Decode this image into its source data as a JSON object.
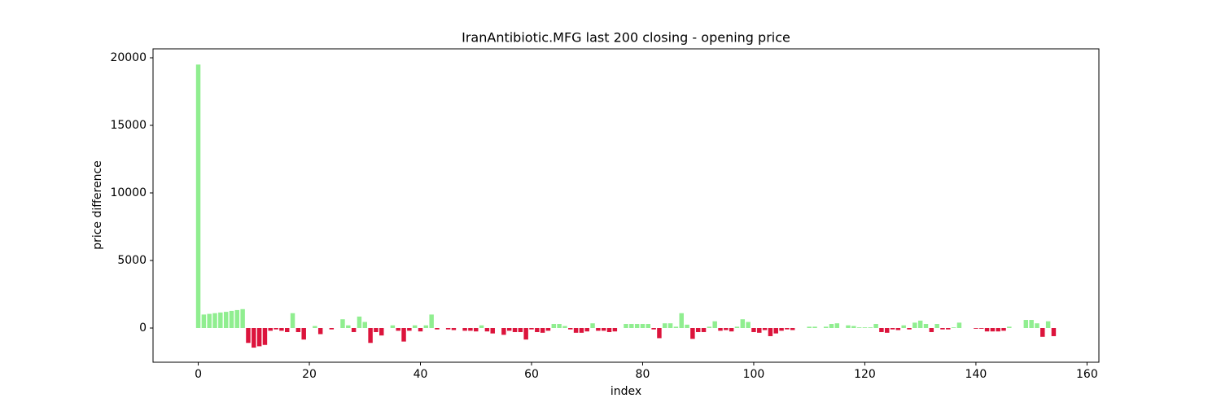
{
  "chart_data": {
    "type": "bar",
    "title": "IranAntibiotic.MFG last 200 closing - opening price",
    "xlabel": "index",
    "ylabel": "price difference",
    "x": [
      0,
      1,
      2,
      3,
      4,
      5,
      6,
      7,
      8,
      9,
      10,
      11,
      12,
      13,
      14,
      15,
      16,
      17,
      18,
      19,
      20,
      21,
      22,
      23,
      24,
      25,
      26,
      27,
      28,
      29,
      30,
      31,
      32,
      33,
      34,
      35,
      36,
      37,
      38,
      39,
      40,
      41,
      42,
      43,
      44,
      45,
      46,
      47,
      48,
      49,
      50,
      51,
      52,
      53,
      54,
      55,
      56,
      57,
      58,
      59,
      60,
      61,
      62,
      63,
      64,
      65,
      66,
      67,
      68,
      69,
      70,
      71,
      72,
      73,
      74,
      75,
      76,
      77,
      78,
      79,
      80,
      81,
      82,
      83,
      84,
      85,
      86,
      87,
      88,
      89,
      90,
      91,
      92,
      93,
      94,
      95,
      96,
      97,
      98,
      99,
      100,
      101,
      102,
      103,
      104,
      105,
      106,
      107,
      108,
      109,
      110,
      111,
      112,
      113,
      114,
      115,
      116,
      117,
      118,
      119,
      120,
      121,
      122,
      123,
      124,
      125,
      126,
      127,
      128,
      129,
      130,
      131,
      132,
      133,
      134,
      135,
      136,
      137,
      138,
      139,
      140,
      141,
      142,
      143,
      144,
      145,
      146,
      147,
      148,
      149,
      150,
      151,
      152,
      153,
      154
    ],
    "values": [
      19500,
      1000,
      1050,
      1100,
      1150,
      1200,
      1270,
      1330,
      1400,
      -1100,
      -1450,
      -1350,
      -1250,
      -200,
      -100,
      -200,
      -300,
      1100,
      -300,
      -850,
      0,
      150,
      -450,
      0,
      -100,
      0,
      650,
      200,
      -300,
      850,
      450,
      -1100,
      -300,
      -550,
      0,
      200,
      -200,
      -1000,
      -200,
      200,
      -250,
      200,
      1000,
      -100,
      0,
      -100,
      -150,
      0,
      -200,
      -200,
      -250,
      200,
      -250,
      -400,
      0,
      -500,
      -200,
      -300,
      -300,
      -850,
      -100,
      -300,
      -350,
      -200,
      300,
      300,
      150,
      -100,
      -350,
      -350,
      -250,
      350,
      -200,
      -200,
      -300,
      -250,
      0,
      300,
      300,
      300,
      300,
      300,
      -100,
      -750,
      350,
      350,
      100,
      1100,
      250,
      -800,
      -300,
      -300,
      100,
      500,
      -200,
      -150,
      -250,
      100,
      650,
      450,
      -300,
      -350,
      -150,
      -600,
      -400,
      -200,
      -100,
      -150,
      0,
      0,
      100,
      100,
      0,
      100,
      300,
      350,
      0,
      200,
      150,
      50,
      50,
      50,
      300,
      -300,
      -350,
      -100,
      -150,
      200,
      -100,
      400,
      550,
      300,
      -300,
      300,
      -100,
      -100,
      50,
      400,
      0,
      0,
      -50,
      -50,
      -250,
      -250,
      -250,
      -200,
      100,
      0,
      0,
      600,
      600,
      350,
      -650,
      500,
      -600
    ],
    "positive_color": "#90ee90",
    "negative_color": "#dc143c",
    "bar_width": 0.8,
    "xlim": [
      -8.14,
      162.14
    ],
    "ylim": [
      -2530,
      20663
    ],
    "xticks": [
      0,
      20,
      40,
      60,
      80,
      100,
      120,
      140,
      160
    ],
    "yticks": [
      0,
      5000,
      10000,
      15000,
      20000
    ],
    "grid": false
  }
}
